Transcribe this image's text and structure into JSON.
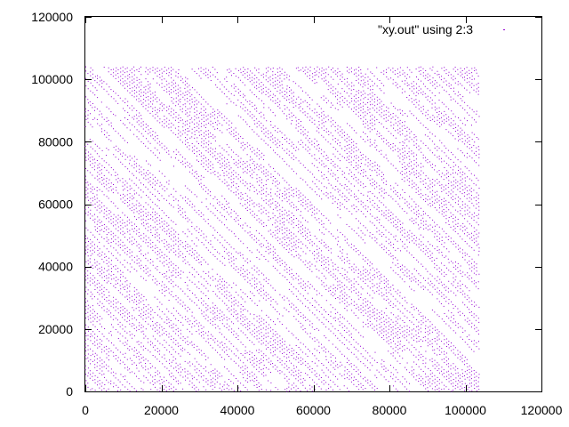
{
  "chart_data": {
    "type": "scatter",
    "title": "",
    "xlabel": "",
    "ylabel": "",
    "xlim": [
      0,
      120000
    ],
    "ylim": [
      0,
      120000
    ],
    "x_ticks": [
      0,
      20000,
      40000,
      60000,
      80000,
      100000,
      120000
    ],
    "y_ticks": [
      0,
      20000,
      40000,
      60000,
      80000,
      100000,
      120000
    ],
    "x_tick_labels": [
      "0",
      "20000",
      "40000",
      "60000",
      "80000",
      "100000",
      "120000"
    ],
    "y_tick_labels": [
      "0",
      "20000",
      "40000",
      "60000",
      "80000",
      "100000",
      "120000"
    ],
    "grid": false,
    "legend_position": "top-right",
    "series": [
      {
        "name": "\"xy.out\" using 2:3",
        "color": "#9400d3",
        "marker": "dot",
        "x_range": [
          0,
          104000
        ],
        "y_range": [
          0,
          104000
        ],
        "pattern": "dense diagonal stripes of dots"
      }
    ]
  }
}
